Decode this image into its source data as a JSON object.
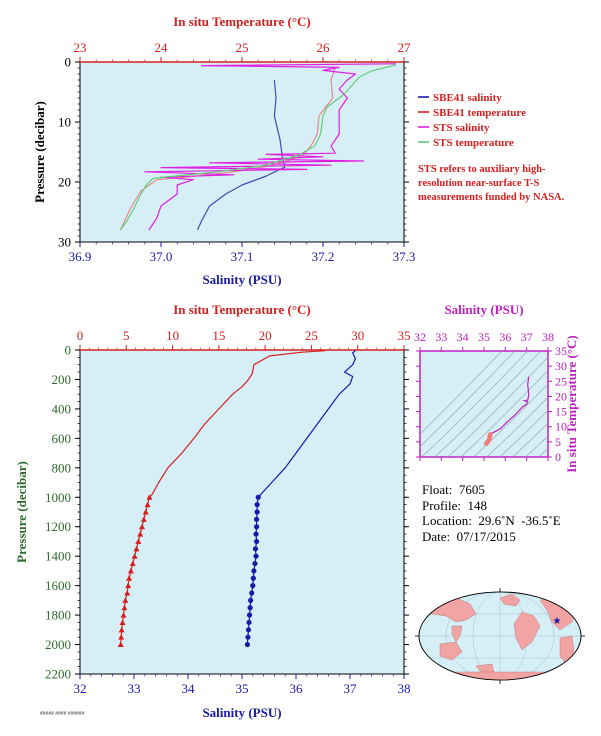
{
  "chart_data": [
    {
      "id": "top",
      "type": "line",
      "title_top": "In situ Temperature (°C)",
      "xlabel": "Salinity (PSU)",
      "ylabel": "Pressure (decibar)",
      "x_sal_ticks": [
        "36.9",
        "37.0",
        "37.1",
        "37.2",
        "37.3"
      ],
      "x_temp_ticks": [
        "23",
        "24",
        "25",
        "26",
        "27"
      ],
      "y_ticks": [
        "0",
        "10",
        "20",
        "30"
      ],
      "sal_range": [
        36.9,
        37.3
      ],
      "temp_range": [
        23,
        27
      ],
      "p_range": [
        0,
        30
      ],
      "legend": [
        {
          "label": "SBE41 salinity",
          "color": "#1a1aa8"
        },
        {
          "label": "SBE41 temperature",
          "color": "#d62020"
        },
        {
          "label": "STS salinity",
          "color": "#e020e0"
        },
        {
          "label": "STS temperature",
          "color": "#66cc77"
        }
      ],
      "note": "STS refers to auxiliary high-resolution near-surface T-S measurements funded by NASA.",
      "series": [
        {
          "id": "sbe_sal",
          "axis": "sal",
          "color": "#3a4fb0",
          "points": [
            [
              37.14,
              3
            ],
            [
              37.142,
              6
            ],
            [
              37.14,
              9
            ],
            [
              37.147,
              13
            ],
            [
              37.15,
              16
            ],
            [
              37.153,
              17.5
            ],
            [
              37.13,
              19
            ],
            [
              37.1,
              20.5
            ],
            [
              37.08,
              22
            ],
            [
              37.06,
              24
            ],
            [
              37.05,
              26.5
            ],
            [
              37.045,
              28
            ]
          ]
        },
        {
          "id": "sbe_temp",
          "axis": "temp",
          "color": "#e28a8a",
          "points": [
            [
              26.15,
              1
            ],
            [
              26.1,
              3
            ],
            [
              26.12,
              6
            ],
            [
              25.95,
              9
            ],
            [
              25.93,
              12
            ],
            [
              25.85,
              14
            ],
            [
              25.75,
              15.6
            ],
            [
              25.55,
              16.5
            ],
            [
              25.35,
              17.3
            ],
            [
              24.9,
              18.3
            ],
            [
              24.3,
              19.2
            ],
            [
              23.95,
              19.6
            ],
            [
              23.75,
              21.5
            ],
            [
              23.62,
              24.5
            ],
            [
              23.5,
              28
            ]
          ]
        },
        {
          "id": "sts_sal",
          "axis": "sal",
          "color": "#e020e0",
          "points": [
            [
              37.29,
              0.3
            ],
            [
              37.05,
              0.6
            ],
            [
              37.22,
              0.9
            ],
            [
              37.2,
              1.4
            ],
            [
              37.24,
              2
            ],
            [
              37.23,
              3
            ],
            [
              37.22,
              4.5
            ],
            [
              37.23,
              6
            ],
            [
              37.22,
              8
            ],
            [
              37.22,
              10
            ],
            [
              37.22,
              12
            ],
            [
              37.21,
              14
            ],
            [
              37.215,
              15.2
            ],
            [
              37.13,
              15.4
            ],
            [
              37.2,
              15.8
            ],
            [
              37.12,
              16.2
            ],
            [
              37.25,
              16.5
            ],
            [
              37.06,
              16.8
            ],
            [
              37.21,
              17.2
            ],
            [
              37.0,
              17.6
            ],
            [
              37.18,
              17.9
            ],
            [
              36.98,
              18.3
            ],
            [
              37.09,
              18.8
            ],
            [
              37.0,
              19.2
            ],
            [
              37.04,
              19.6
            ],
            [
              37.02,
              20.5
            ],
            [
              37.02,
              22
            ],
            [
              37.0,
              24
            ],
            [
              36.995,
              26
            ],
            [
              36.985,
              28
            ]
          ]
        },
        {
          "id": "sts_temp",
          "axis": "temp",
          "color": "#66cc77",
          "points": [
            [
              26.9,
              0.5
            ],
            [
              26.6,
              1.5
            ],
            [
              26.45,
              2.5
            ],
            [
              26.35,
              4
            ],
            [
              26.25,
              5.5
            ],
            [
              26.05,
              7.5
            ],
            [
              26.0,
              9
            ],
            [
              25.97,
              12
            ],
            [
              25.9,
              14
            ],
            [
              25.7,
              15.5
            ],
            [
              25.5,
              16.3
            ],
            [
              25.3,
              17.2
            ],
            [
              24.7,
              18.3
            ],
            [
              24.1,
              19.1
            ],
            [
              23.9,
              19.4
            ],
            [
              23.82,
              20.5
            ],
            [
              23.75,
              22
            ],
            [
              23.68,
              24
            ],
            [
              23.58,
              26.5
            ],
            [
              23.5,
              28
            ]
          ]
        }
      ]
    },
    {
      "id": "bottom",
      "type": "line",
      "title_top": "In situ Temperature (°C)",
      "xlabel": "Salinity (PSU)",
      "ylabel": "Pressure (decibar)",
      "x_sal_ticks": [
        "32",
        "33",
        "34",
        "35",
        "36",
        "37",
        "38"
      ],
      "x_temp_ticks": [
        "0",
        "5",
        "10",
        "15",
        "20",
        "25",
        "30",
        "35"
      ],
      "y_ticks": [
        "0",
        "200",
        "400",
        "600",
        "800",
        "1000",
        "1200",
        "1400",
        "1600",
        "1800",
        "2000",
        "2200"
      ],
      "sal_range": [
        32,
        38
      ],
      "temp_range": [
        0,
        35
      ],
      "p_range": [
        0,
        2200
      ],
      "series": [
        {
          "id": "salinity",
          "axis": "sal",
          "color": "#1a1aa8",
          "points": [
            [
              37.1,
              5
            ],
            [
              37.05,
              20
            ],
            [
              37.1,
              60
            ],
            [
              37.05,
              100
            ],
            [
              36.9,
              150
            ],
            [
              37.05,
              180
            ],
            [
              37.0,
              230
            ],
            [
              36.8,
              300
            ],
            [
              36.6,
              400
            ],
            [
              36.4,
              500
            ],
            [
              36.2,
              600
            ],
            [
              36.0,
              700
            ],
            [
              35.8,
              800
            ],
            [
              35.55,
              900
            ],
            [
              35.35,
              980
            ],
            [
              35.3,
              1000
            ],
            [
              35.28,
              1050
            ],
            [
              35.28,
              1100
            ],
            [
              35.27,
              1150
            ],
            [
              35.27,
              1200
            ],
            [
              35.26,
              1250
            ],
            [
              35.27,
              1300
            ],
            [
              35.25,
              1350
            ],
            [
              35.26,
              1400
            ],
            [
              35.24,
              1450
            ],
            [
              35.22,
              1500
            ],
            [
              35.21,
              1550
            ],
            [
              35.2,
              1600
            ],
            [
              35.18,
              1650
            ],
            [
              35.16,
              1700
            ],
            [
              35.15,
              1750
            ],
            [
              35.14,
              1800
            ],
            [
              35.13,
              1850
            ],
            [
              35.12,
              1900
            ],
            [
              35.11,
              1950
            ],
            [
              35.1,
              2000
            ]
          ]
        },
        {
          "id": "temperature",
          "axis": "temp",
          "color": "#d62020",
          "points": [
            [
              26.5,
              5
            ],
            [
              24,
              15
            ],
            [
              20.5,
              40
            ],
            [
              18.8,
              100
            ],
            [
              18.6,
              160
            ],
            [
              18.2,
              200
            ],
            [
              17.5,
              250
            ],
            [
              16.5,
              300
            ],
            [
              15,
              400
            ],
            [
              13.5,
              500
            ],
            [
              12.3,
              600
            ],
            [
              11,
              700
            ],
            [
              9.5,
              800
            ],
            [
              8.5,
              900
            ],
            [
              7.8,
              980
            ],
            [
              7.5,
              1000
            ],
            [
              7.3,
              1050
            ],
            [
              7.1,
              1100
            ],
            [
              6.9,
              1150
            ],
            [
              6.7,
              1200
            ],
            [
              6.5,
              1250
            ],
            [
              6.3,
              1300
            ],
            [
              6.1,
              1350
            ],
            [
              5.9,
              1400
            ],
            [
              5.7,
              1450
            ],
            [
              5.5,
              1500
            ],
            [
              5.3,
              1550
            ],
            [
              5.2,
              1600
            ],
            [
              5.1,
              1650
            ],
            [
              4.9,
              1700
            ],
            [
              4.8,
              1750
            ],
            [
              4.7,
              1800
            ],
            [
              4.6,
              1850
            ],
            [
              4.5,
              1900
            ],
            [
              4.45,
              1950
            ],
            [
              4.4,
              2000
            ]
          ]
        }
      ]
    },
    {
      "id": "ts_inset",
      "type": "scatter",
      "title_top": "Salinity (PSU)",
      "ylabel": "In situ Temperature (°C)",
      "x_ticks": [
        "32",
        "33",
        "34",
        "35",
        "36",
        "37",
        "38"
      ],
      "y_ticks": [
        "0",
        "5",
        "10",
        "15",
        "20",
        "25",
        "30",
        "35"
      ],
      "x_range": [
        32,
        38
      ],
      "y_range": [
        0,
        35
      ]
    }
  ],
  "float_info": {
    "float": "Float:  7605",
    "profile": "Profile:  148",
    "location": "Location:  29.6˚N  -36.5˚E",
    "date": "Date:  07/17/2015"
  },
  "footer_tiny": "#####  ####  ######"
}
